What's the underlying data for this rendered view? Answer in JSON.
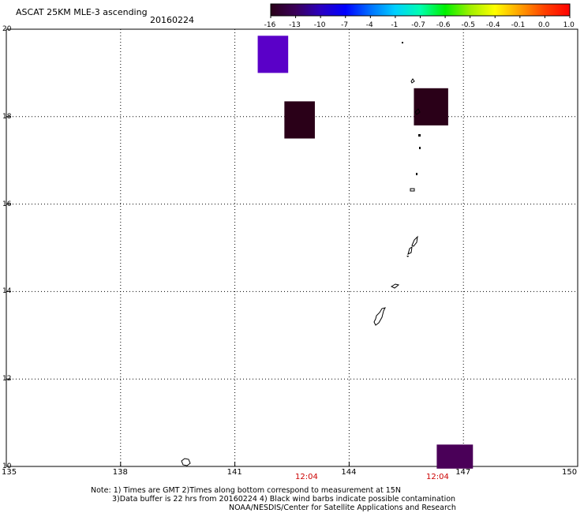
{
  "title": "ASCAT 25KM MLE-3 ascending",
  "date": "20160224",
  "colorbar": {
    "labels": [
      "-16",
      "-13",
      "-10",
      "-7",
      "-4",
      "-1",
      "-0.7",
      "-0.6",
      "-0.5",
      "-0.4",
      "-0.1",
      "0.0",
      "1.0"
    ],
    "colors": [
      "#2a0018",
      "#3a0058",
      "#2a00c0",
      "#0000ff",
      "#0070ff",
      "#00d0ff",
      "#00ffb0",
      "#00f000",
      "#a0f000",
      "#ffff00",
      "#ffa000",
      "#ff4000",
      "#ff0000"
    ]
  },
  "map": {
    "lon_range": [
      135,
      150
    ],
    "lat_range": [
      10,
      20
    ],
    "lon_ticks": [
      "135",
      "138",
      "141",
      "144",
      "147",
      "150"
    ],
    "lat_ticks": [
      "20",
      "18",
      "16",
      "14",
      "12",
      "10"
    ],
    "times": [
      "12:04",
      "12:04"
    ],
    "cells": [
      {
        "lon0": 141.6,
        "lon1": 142.4,
        "lat0": 19.0,
        "lat1": 19.85,
        "color": "#5a00c8"
      },
      {
        "lon0": 142.3,
        "lon1": 143.1,
        "lat0": 17.5,
        "lat1": 18.35,
        "color": "#2a0018"
      },
      {
        "lon0": 145.7,
        "lon1": 146.6,
        "lat0": 17.8,
        "lat1": 18.65,
        "color": "#2a0018"
      },
      {
        "lon0": 146.3,
        "lon1": 147.25,
        "lat0": 9.95,
        "lat1": 10.5,
        "color": "#4a0058"
      }
    ]
  },
  "notes": {
    "line1": "Note: 1) Times are GMT 2)Times along bottom correspond to measurement at 15N",
    "line2": "3)Data buffer is 22 hrs from 20160224 4) Black wind barbs indicate possible contamination",
    "line3": "NOAA/NESDIS/Center for Satellite Applications and Research"
  }
}
